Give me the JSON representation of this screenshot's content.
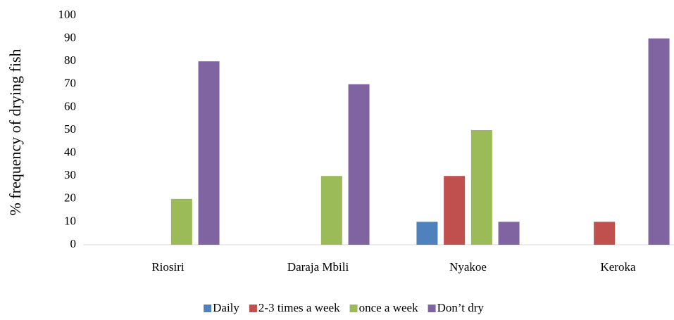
{
  "chart_data": {
    "type": "bar",
    "y_label": "% frequency  of drying fish",
    "categories": [
      "Riosiri",
      "Daraja Mbili",
      "Nyakoe",
      "Keroka"
    ],
    "series": [
      {
        "name": "Daily",
        "color": "#4f81bd",
        "values": [
          0,
          0,
          10,
          0
        ]
      },
      {
        "name": "2-3 times a week",
        "color": "#c0504d",
        "values": [
          0,
          0,
          30,
          10
        ]
      },
      {
        "name": "once a week",
        "color": "#9bbb59",
        "values": [
          20,
          30,
          50,
          0
        ]
      },
      {
        "name": "Don’t dry",
        "color": "#8064a2",
        "values": [
          80,
          70,
          10,
          90
        ]
      }
    ],
    "ylim": [
      0,
      100
    ],
    "yticks": [
      0,
      10,
      20,
      30,
      40,
      50,
      60,
      70,
      80,
      90,
      100
    ],
    "grid": false,
    "legend": "bottom"
  }
}
